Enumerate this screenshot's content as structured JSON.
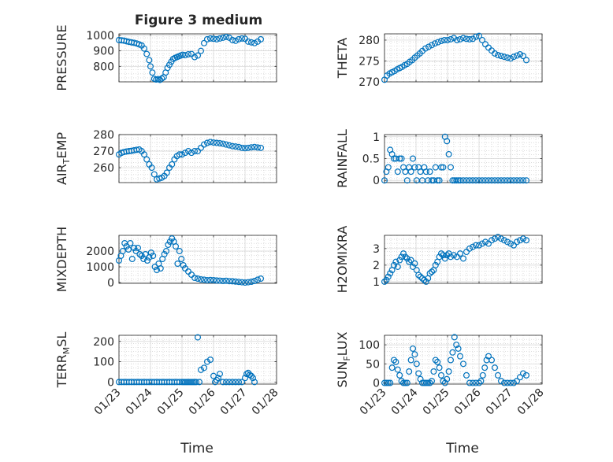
{
  "figure": {
    "title": "Figure 3 medium",
    "marker_color": "#0072BD",
    "x_tick_labels": [
      "01/23",
      "01/24",
      "01/25",
      "01/26",
      "01/27",
      "01/28"
    ],
    "x_label": "Time"
  },
  "chart_data": [
    {
      "type": "scatter",
      "ylabel": "PRESSURE",
      "ylim": [
        700,
        1010
      ],
      "yticks": [
        800,
        900,
        1000
      ],
      "xlim": [
        0,
        5
      ],
      "grid": true,
      "x": [
        0.0,
        0.08,
        0.16,
        0.24,
        0.32,
        0.4,
        0.48,
        0.56,
        0.64,
        0.72,
        0.8,
        0.88,
        0.96,
        1.0,
        1.06,
        1.12,
        1.18,
        1.24,
        1.3,
        1.36,
        1.42,
        1.48,
        1.54,
        1.6,
        1.66,
        1.72,
        1.78,
        1.84,
        1.9,
        1.96,
        2.02,
        2.1,
        2.2,
        2.3,
        2.4,
        2.5,
        2.6,
        2.7,
        2.8,
        2.9,
        3.0,
        3.1,
        3.2,
        3.3,
        3.4,
        3.5,
        3.6,
        3.7,
        3.8,
        3.9,
        4.0,
        4.1,
        4.2,
        4.3,
        4.4,
        4.5
      ],
      "y": [
        970,
        968,
        966,
        962,
        958,
        955,
        952,
        948,
        942,
        935,
        915,
        880,
        840,
        800,
        760,
        720,
        715,
        718,
        713,
        722,
        730,
        760,
        790,
        810,
        830,
        848,
        855,
        860,
        865,
        870,
        875,
        872,
        878,
        880,
        860,
        870,
        900,
        950,
        975,
        980,
        978,
        975,
        980,
        985,
        990,
        985,
        970,
        965,
        975,
        980,
        978,
        960,
        955,
        950,
        960,
        975
      ]
    },
    {
      "type": "scatter",
      "ylabel": "THETA",
      "ylim": [
        270,
        281.5
      ],
      "yticks": [
        270,
        275,
        280
      ],
      "xlim": [
        0,
        5
      ],
      "grid": true,
      "x": [
        0.0,
        0.08,
        0.16,
        0.24,
        0.32,
        0.4,
        0.48,
        0.56,
        0.64,
        0.72,
        0.8,
        0.88,
        0.96,
        1.04,
        1.12,
        1.2,
        1.3,
        1.4,
        1.5,
        1.6,
        1.7,
        1.8,
        1.9,
        2.0,
        2.1,
        2.2,
        2.3,
        2.4,
        2.5,
        2.6,
        2.7,
        2.8,
        2.9,
        3.0,
        3.1,
        3.2,
        3.3,
        3.4,
        3.5,
        3.6,
        3.7,
        3.8,
        3.9,
        4.0,
        4.1,
        4.2,
        4.3,
        4.4,
        4.5
      ],
      "y": [
        270.5,
        271.5,
        272,
        272.3,
        272.6,
        273,
        273.3,
        273.6,
        274,
        274.3,
        274.8,
        275.2,
        275.8,
        276.3,
        276.8,
        277.4,
        278,
        278.4,
        278.8,
        279.2,
        279.5,
        279.8,
        280,
        280,
        280.2,
        280.5,
        280,
        280.2,
        280.5,
        280.3,
        280.2,
        280.3,
        280.8,
        281,
        280,
        279,
        278.2,
        277.5,
        276.8,
        276.4,
        276.2,
        276,
        275.8,
        275.6,
        276,
        276.3,
        276.6,
        276.2,
        275.2
      ]
    },
    {
      "type": "scatter",
      "ylabel": "AIR_TEMP",
      "ylim": [
        251,
        280
      ],
      "yticks": [
        260,
        270,
        280
      ],
      "xlim": [
        0,
        5
      ],
      "grid": true,
      "x": [
        0.0,
        0.08,
        0.16,
        0.24,
        0.32,
        0.4,
        0.48,
        0.56,
        0.64,
        0.72,
        0.8,
        0.88,
        0.96,
        1.04,
        1.12,
        1.2,
        1.28,
        1.36,
        1.44,
        1.52,
        1.6,
        1.68,
        1.76,
        1.84,
        1.92,
        2.0,
        2.1,
        2.2,
        2.3,
        2.4,
        2.5,
        2.6,
        2.7,
        2.8,
        2.9,
        3.0,
        3.1,
        3.2,
        3.3,
        3.4,
        3.5,
        3.6,
        3.7,
        3.8,
        3.9,
        4.0,
        4.1,
        4.2,
        4.3,
        4.4,
        4.5
      ],
      "y": [
        268,
        269,
        269.5,
        269.8,
        270,
        270.2,
        270.5,
        270.8,
        271,
        270,
        268,
        265,
        262,
        260,
        256,
        253,
        253.5,
        254,
        255,
        257,
        260,
        262,
        265,
        267,
        268,
        268,
        269,
        270,
        269,
        270,
        270,
        272,
        274,
        275,
        275.5,
        275.2,
        275,
        274.8,
        274.5,
        274,
        273.5,
        273,
        272.8,
        272.5,
        272,
        271.8,
        272,
        272.3,
        272.5,
        272.2,
        272
      ]
    },
    {
      "type": "scatter",
      "ylabel": "RAINFALL",
      "ylim": [
        -0.05,
        1.05
      ],
      "yticks": [
        0,
        0.5,
        1
      ],
      "xlim": [
        0,
        5
      ],
      "grid": true,
      "x": [
        0.0,
        0.06,
        0.12,
        0.18,
        0.24,
        0.3,
        0.36,
        0.42,
        0.48,
        0.54,
        0.6,
        0.66,
        0.72,
        0.78,
        0.84,
        0.9,
        0.96,
        1.02,
        1.08,
        1.14,
        1.2,
        1.26,
        1.32,
        1.38,
        1.44,
        1.5,
        1.56,
        1.62,
        1.68,
        1.74,
        1.8,
        1.86,
        1.92,
        1.98,
        2.04,
        2.1,
        2.16,
        2.22,
        2.28,
        2.34,
        2.4,
        2.5,
        2.6,
        2.7,
        2.8,
        2.9,
        3.0,
        3.1,
        3.2,
        3.3,
        3.4,
        3.5,
        3.6,
        3.7,
        3.8,
        3.9,
        4.0,
        4.1,
        4.2,
        4.3,
        4.4,
        4.5
      ],
      "y": [
        0,
        0.2,
        0.3,
        0.7,
        0.6,
        0.5,
        0.5,
        0.2,
        0.5,
        0.5,
        0.3,
        0.2,
        0,
        0.3,
        0.2,
        0.5,
        0.3,
        0,
        0.3,
        0.2,
        0,
        0.3,
        0.2,
        0,
        0.2,
        0,
        0,
        0.3,
        0,
        0,
        0.3,
        0.3,
        1,
        0.9,
        0.6,
        0.3,
        0,
        0,
        0,
        0,
        0,
        0,
        0,
        0,
        0,
        0,
        0,
        0,
        0,
        0,
        0,
        0,
        0,
        0,
        0,
        0,
        0,
        0,
        0,
        0,
        0,
        0
      ]
    },
    {
      "type": "scatter",
      "ylabel": "MIXDEPTH",
      "ylim": [
        -50,
        3000
      ],
      "yticks": [
        0,
        1000,
        2000
      ],
      "xlim": [
        0,
        5
      ],
      "grid": true,
      "x": [
        0.0,
        0.06,
        0.12,
        0.18,
        0.24,
        0.3,
        0.36,
        0.42,
        0.48,
        0.54,
        0.6,
        0.66,
        0.72,
        0.78,
        0.84,
        0.9,
        0.96,
        1.02,
        1.08,
        1.14,
        1.2,
        1.26,
        1.32,
        1.38,
        1.44,
        1.5,
        1.56,
        1.62,
        1.68,
        1.74,
        1.8,
        1.86,
        1.92,
        1.98,
        2.04,
        2.1,
        2.2,
        2.3,
        2.4,
        2.5,
        2.6,
        2.7,
        2.8,
        2.9,
        3.0,
        3.1,
        3.2,
        3.3,
        3.4,
        3.5,
        3.6,
        3.7,
        3.8,
        3.9,
        4.0,
        4.1,
        4.2,
        4.3,
        4.4,
        4.5
      ],
      "y": [
        1400,
        1700,
        2000,
        2500,
        2300,
        2100,
        2500,
        1500,
        2200,
        2000,
        2200,
        1800,
        1700,
        1500,
        1800,
        1400,
        1600,
        1900,
        1700,
        1000,
        800,
        1200,
        900,
        1500,
        1800,
        2000,
        2400,
        2600,
        2800,
        2600,
        2300,
        1200,
        2000,
        1500,
        1100,
        900,
        700,
        500,
        300,
        250,
        200,
        180,
        150,
        160,
        150,
        130,
        120,
        100,
        110,
        90,
        80,
        60,
        40,
        20,
        0,
        20,
        50,
        100,
        180,
        250
      ]
    },
    {
      "type": "scatter",
      "ylabel": "H2OMIXRA",
      "ylim": [
        0.9,
        3.8
      ],
      "yticks": [
        1,
        2,
        3
      ],
      "xlim": [
        0,
        5
      ],
      "grid": true,
      "x": [
        0.0,
        0.06,
        0.12,
        0.18,
        0.24,
        0.3,
        0.36,
        0.42,
        0.48,
        0.54,
        0.6,
        0.66,
        0.72,
        0.78,
        0.84,
        0.9,
        0.96,
        1.02,
        1.08,
        1.14,
        1.2,
        1.26,
        1.32,
        1.38,
        1.44,
        1.5,
        1.56,
        1.62,
        1.68,
        1.74,
        1.8,
        1.86,
        1.92,
        1.98,
        2.04,
        2.1,
        2.2,
        2.3,
        2.4,
        2.5,
        2.6,
        2.7,
        2.8,
        2.9,
        3.0,
        3.1,
        3.2,
        3.3,
        3.4,
        3.5,
        3.6,
        3.7,
        3.8,
        3.9,
        4.0,
        4.1,
        4.2,
        4.3,
        4.4,
        4.5
      ],
      "y": [
        1.0,
        1.1,
        1.3,
        1.5,
        1.7,
        2.0,
        2.2,
        1.9,
        2.3,
        2.5,
        2.7,
        2.5,
        2.4,
        2.2,
        2.3,
        1.9,
        2.1,
        1.7,
        1.4,
        1.3,
        1.2,
        1.1,
        1.0,
        1.2,
        1.5,
        1.6,
        1.7,
        2.0,
        2.2,
        2.5,
        2.7,
        2.6,
        2.4,
        2.6,
        2.7,
        2.5,
        2.6,
        2.5,
        2.7,
        2.4,
        2.8,
        3.0,
        3.1,
        3.2,
        3.2,
        3.3,
        3.4,
        3.3,
        3.5,
        3.6,
        3.7,
        3.6,
        3.5,
        3.4,
        3.3,
        3.2,
        3.4,
        3.5,
        3.6,
        3.5
      ]
    },
    {
      "type": "scatter",
      "ylabel": "TERR_MSL",
      "ylim": [
        -10,
        230
      ],
      "yticks": [
        0,
        100,
        200
      ],
      "xlim": [
        0,
        5
      ],
      "grid": true,
      "x": [
        0.0,
        0.08,
        0.16,
        0.24,
        0.32,
        0.4,
        0.48,
        0.56,
        0.64,
        0.72,
        0.8,
        0.88,
        0.96,
        1.04,
        1.12,
        1.2,
        1.28,
        1.36,
        1.44,
        1.52,
        1.6,
        1.68,
        1.76,
        1.84,
        1.92,
        2.0,
        2.05,
        2.1,
        2.15,
        2.2,
        2.25,
        2.3,
        2.35,
        2.4,
        2.45,
        2.5,
        2.55,
        2.6,
        2.7,
        2.8,
        2.9,
        3.0,
        3.05,
        3.1,
        3.15,
        3.2,
        3.3,
        3.4,
        3.5,
        3.6,
        3.7,
        3.8,
        3.9,
        4.0,
        4.05,
        4.1,
        4.15,
        4.2,
        4.25,
        4.3
      ],
      "y": [
        0,
        0,
        0,
        0,
        0,
        0,
        0,
        0,
        0,
        0,
        0,
        0,
        0,
        0,
        0,
        0,
        0,
        0,
        0,
        0,
        0,
        0,
        0,
        0,
        0,
        0,
        0,
        0,
        0,
        0,
        0,
        0,
        0,
        0,
        0,
        220,
        0,
        60,
        70,
        100,
        110,
        30,
        0,
        10,
        20,
        40,
        0,
        0,
        0,
        0,
        0,
        0,
        0,
        20,
        40,
        45,
        35,
        30,
        20,
        0
      ]
    },
    {
      "type": "scatter",
      "ylabel": "SUN_FLUX",
      "ylim": [
        -3,
        125
      ],
      "yticks": [
        0,
        50,
        100
      ],
      "xlim": [
        0,
        5
      ],
      "grid": true,
      "x": [
        0.0,
        0.06,
        0.12,
        0.18,
        0.24,
        0.3,
        0.36,
        0.42,
        0.48,
        0.54,
        0.6,
        0.66,
        0.72,
        0.78,
        0.84,
        0.9,
        0.96,
        1.02,
        1.08,
        1.14,
        1.2,
        1.26,
        1.32,
        1.38,
        1.44,
        1.5,
        1.56,
        1.62,
        1.68,
        1.74,
        1.8,
        1.86,
        1.92,
        1.98,
        2.04,
        2.1,
        2.16,
        2.22,
        2.28,
        2.34,
        2.4,
        2.5,
        2.6,
        2.7,
        2.8,
        2.9,
        3.0,
        3.06,
        3.12,
        3.18,
        3.24,
        3.3,
        3.4,
        3.5,
        3.6,
        3.7,
        3.8,
        3.9,
        4.0,
        4.1,
        4.2,
        4.3,
        4.4,
        4.5
      ],
      "y": [
        0,
        0,
        0,
        0,
        40,
        60,
        55,
        35,
        20,
        5,
        0,
        0,
        0,
        30,
        60,
        90,
        75,
        50,
        25,
        10,
        0,
        0,
        0,
        0,
        0,
        5,
        30,
        60,
        55,
        40,
        20,
        5,
        0,
        10,
        30,
        60,
        80,
        120,
        100,
        90,
        70,
        50,
        20,
        0,
        0,
        0,
        0,
        5,
        20,
        40,
        60,
        70,
        60,
        40,
        20,
        5,
        0,
        0,
        0,
        0,
        5,
        15,
        25,
        20
      ]
    }
  ]
}
